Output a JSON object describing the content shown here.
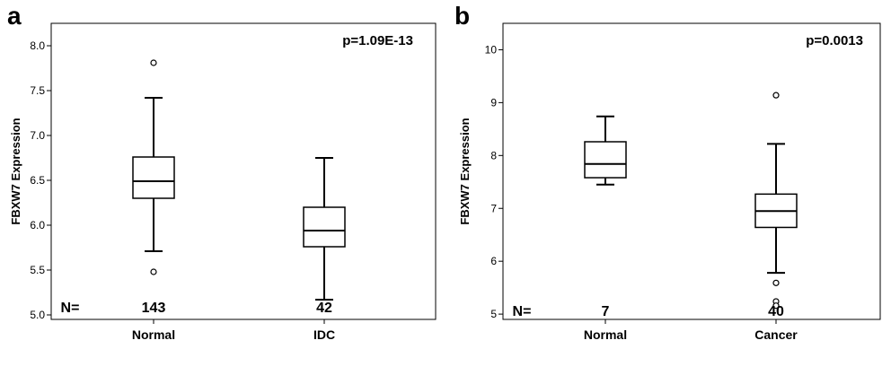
{
  "chart_data": [
    {
      "type": "box",
      "panel_label": "a",
      "ylabel": "FBXW7 Expression",
      "ylim": [
        4.95,
        8.25
      ],
      "yticks": [
        5.0,
        5.5,
        6.0,
        6.5,
        7.0,
        7.5,
        8.0
      ],
      "ytick_labels": [
        "5.0",
        "5.5",
        "6.0",
        "6.5",
        "7.0",
        "7.5",
        "8.0"
      ],
      "annotation": "p=1.09E-13",
      "n_prefix": "N=",
      "categories": [
        "Normal",
        "IDC"
      ],
      "n_values": [
        "143",
        "42"
      ],
      "boxes": [
        {
          "whisker_low": 5.71,
          "q1": 6.3,
          "median": 6.49,
          "q3": 6.76,
          "whisker_high": 7.42,
          "outliers": [
            7.81,
            5.48
          ]
        },
        {
          "whisker_low": 5.17,
          "q1": 5.76,
          "median": 5.94,
          "q3": 6.2,
          "whisker_high": 6.75,
          "outliers": []
        }
      ]
    },
    {
      "type": "box",
      "panel_label": "b",
      "ylabel": "FBXW7 Expression",
      "ylim": [
        4.9,
        10.5
      ],
      "yticks": [
        5,
        6,
        7,
        8,
        9,
        10
      ],
      "ytick_labels": [
        "5",
        "6",
        "7",
        "8",
        "9",
        "10"
      ],
      "annotation": "p=0.0013",
      "n_prefix": "N=",
      "categories": [
        "Normal",
        "Cancer"
      ],
      "n_values": [
        "7",
        "40"
      ],
      "boxes": [
        {
          "whisker_low": 7.45,
          "q1": 7.58,
          "median": 7.84,
          "q3": 8.26,
          "whisker_high": 8.74,
          "outliers": []
        },
        {
          "whisker_low": 5.78,
          "q1": 6.64,
          "median": 6.95,
          "q3": 7.27,
          "whisker_high": 8.22,
          "outliers": [
            9.14,
            5.59,
            5.24,
            5.16
          ]
        }
      ]
    }
  ]
}
